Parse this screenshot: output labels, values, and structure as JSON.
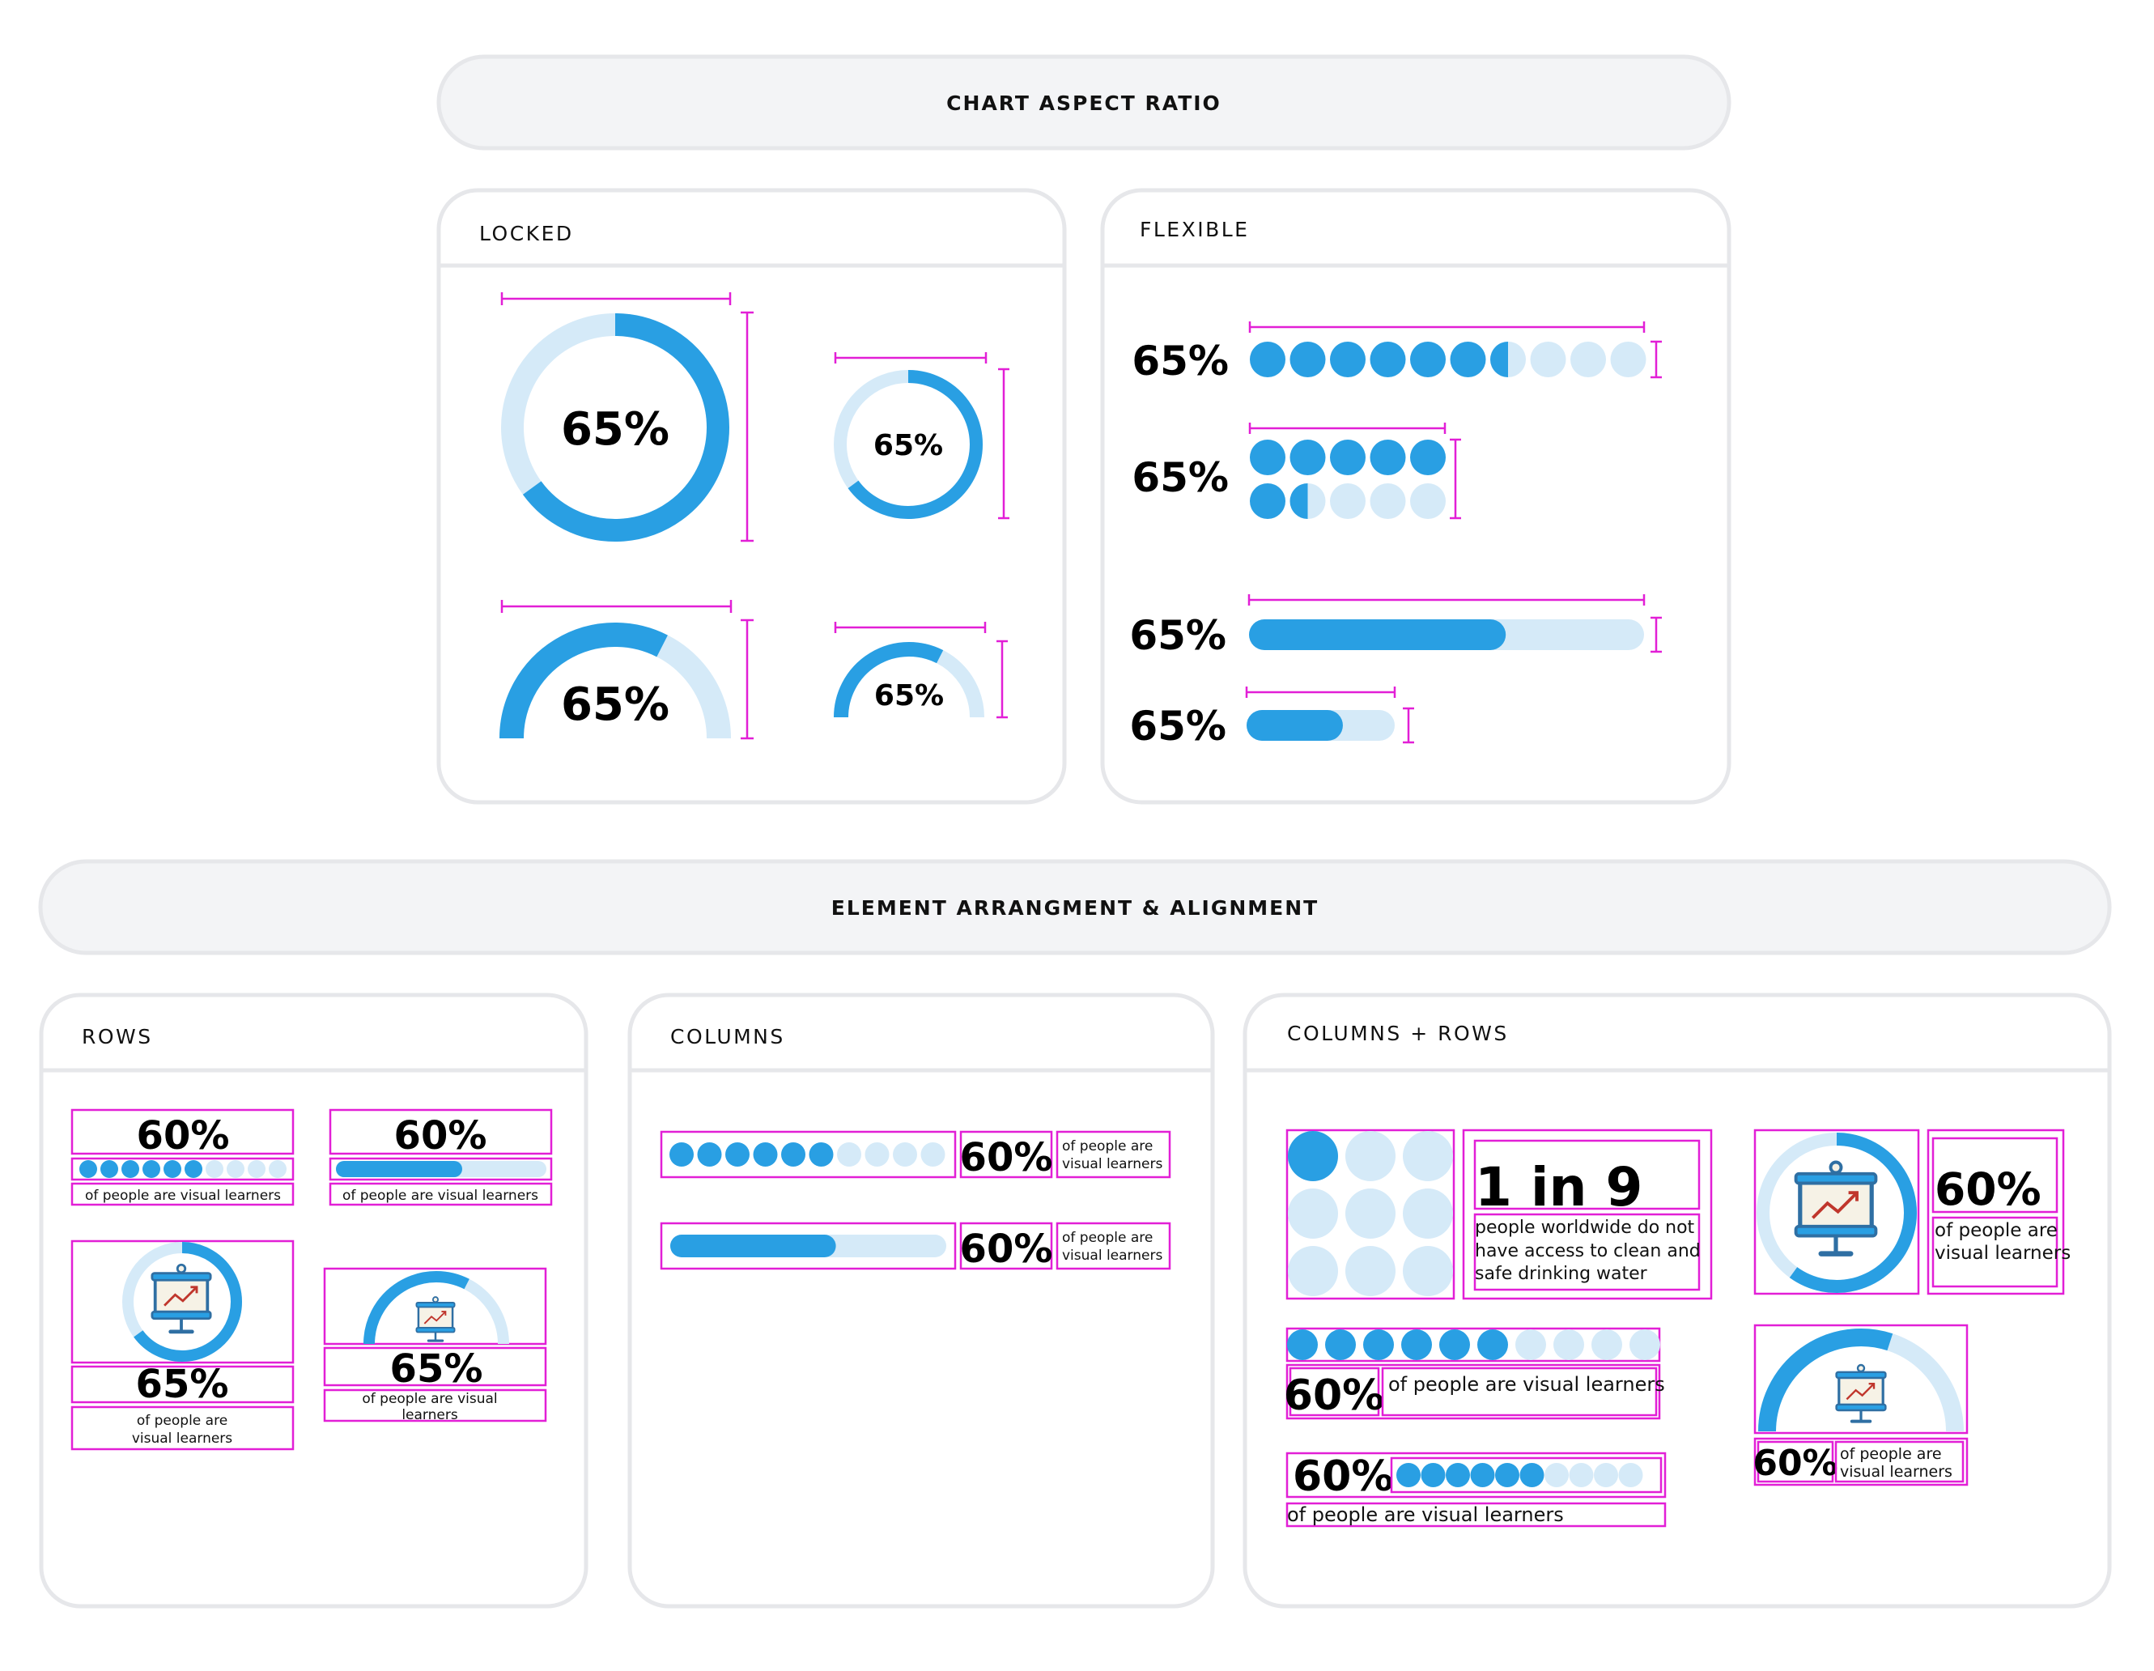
{
  "banners": {
    "aspect": "CHART ASPECT RATIO",
    "arrangement": "ELEMENT ARRANGMENT & ALIGNMENT"
  },
  "cards": {
    "locked": "LOCKED",
    "flexible": "FLEXIBLE",
    "rows": "ROWS",
    "columns": "COLUMNS",
    "columns_rows": "COLUMNS + ROWS"
  },
  "values": {
    "pct65": "65%",
    "pct60": "60%",
    "one_in_nine": "1 in 9"
  },
  "captions": {
    "visual": "of people are visual learners",
    "visual_l1": "of people are",
    "visual_l2": "visual learners",
    "visual_l1b": "of people are visual",
    "visual_l2b": "learners",
    "water_l1": "people worldwide do not",
    "water_l2": "have access to clean and",
    "water_l3": "safe drinking water"
  },
  "colors": {
    "fill": "#299fe3",
    "track": "#d5eaf8",
    "annotation": "#e21fd6"
  },
  "icons": [
    "presentation-chart-icon"
  ],
  "charts": {
    "locked_donut": 0.65,
    "locked_gauge": 0.65,
    "flexible_dots": 0.65,
    "flexible_bar": 0.65,
    "rows_dots": 0.6,
    "rows_bar": 0.6,
    "rows_donut": 0.65,
    "rows_gauge": 0.65,
    "columns_dots": 0.6,
    "columns_bar": 0.6,
    "cr_waffle": 0.111,
    "cr_dots": 0.6,
    "cr_donut": 0.6,
    "cr_gauge": 0.6
  }
}
